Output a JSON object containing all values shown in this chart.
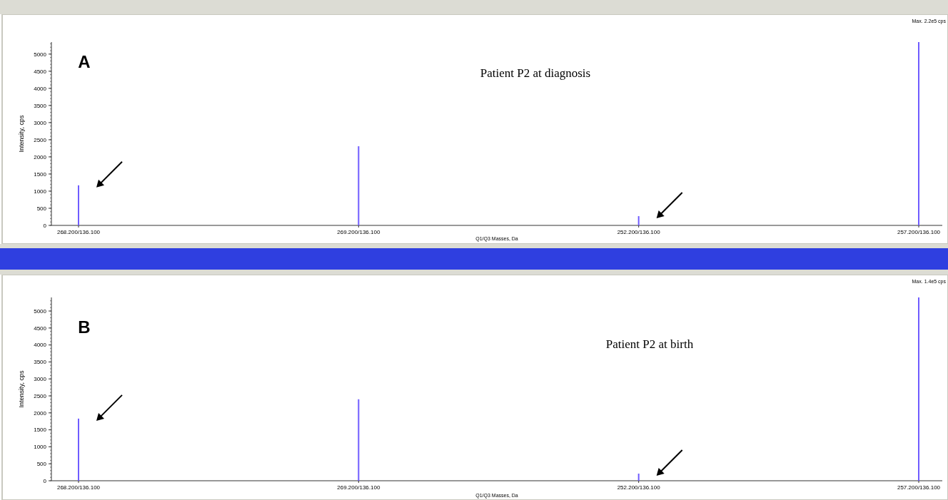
{
  "chart_data": [
    {
      "type": "bar",
      "title": "Patient P2 at diagnosis",
      "xlabel": "Q1/Q3 Masses, Da",
      "ylabel": "Intensity, cps",
      "categories": [
        "268.200/136.100",
        "269.200/136.100",
        "252.200/136.100",
        "257.200/136.100"
      ],
      "values": [
        1170,
        2310,
        270,
        5350
      ],
      "color": "#6f5cff",
      "ylim": [
        0,
        5350
      ],
      "yticks": [
        0,
        500,
        1000,
        1500,
        2000,
        2500,
        3000,
        3500,
        4000,
        4500,
        5000
      ],
      "annotations": [
        "A",
        "Max. 2.2e5 cps"
      ]
    },
    {
      "type": "bar",
      "title": "Patient P2 at birth",
      "xlabel": "Q1/Q3 Masses, Da",
      "ylabel": "Intensity, cps",
      "categories": [
        "268.200/136.100",
        "269.200/136.100",
        "252.200/136.100",
        "257.200/136.100"
      ],
      "values": [
        1830,
        2400,
        210,
        5400
      ],
      "color": "#6f5cff",
      "ylim": [
        0,
        5400
      ],
      "yticks": [
        0,
        500,
        1000,
        1500,
        2000,
        2500,
        3000,
        3500,
        4000,
        4500,
        5000
      ],
      "annotations": [
        "B",
        "Max. 1.4e5 cps"
      ]
    }
  ]
}
